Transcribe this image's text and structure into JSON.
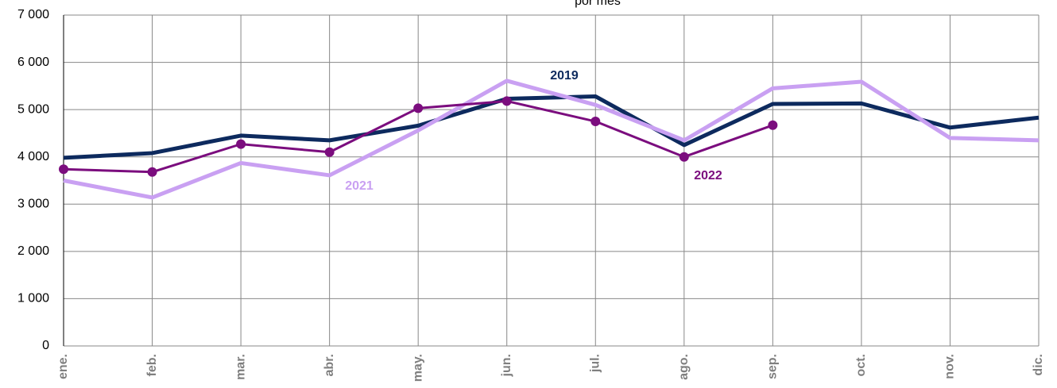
{
  "chart_data": {
    "type": "line",
    "title": "por mes",
    "categories": [
      "ene.",
      "feb.",
      "mar.",
      "abr.",
      "may.",
      "jun.",
      "jul.",
      "ago.",
      "sep.",
      "oct.",
      "nov.",
      "dic."
    ],
    "series": [
      {
        "name": "2019",
        "color": "#0d2a5e",
        "values": [
          3980,
          4080,
          4450,
          4350,
          4660,
          5230,
          5280,
          4250,
          5120,
          5130,
          4620,
          4830
        ]
      },
      {
        "name": "2021",
        "color": "#c9a0f2",
        "values": [
          3500,
          3140,
          3870,
          3610,
          4560,
          5610,
          5100,
          4350,
          5450,
          5590,
          4400,
          4350
        ]
      },
      {
        "name": "2022",
        "color": "#7b0d7e",
        "values": [
          3740,
          3680,
          4270,
          4100,
          5030,
          5180,
          4750,
          4000,
          4670,
          null,
          null,
          null
        ],
        "markers": true
      }
    ],
    "ylim": [
      0,
      7000
    ],
    "yticks": [
      {
        "value": 0,
        "label": "0"
      },
      {
        "value": 1000,
        "label": "1 000"
      },
      {
        "value": 2000,
        "label": "2 000"
      },
      {
        "value": 3000,
        "label": "3 000"
      },
      {
        "value": 4000,
        "label": "4 000"
      },
      {
        "value": 5000,
        "label": "5 000"
      },
      {
        "value": 6000,
        "label": "6 000"
      },
      {
        "value": 7000,
        "label": "7 000"
      }
    ],
    "grid": true
  }
}
